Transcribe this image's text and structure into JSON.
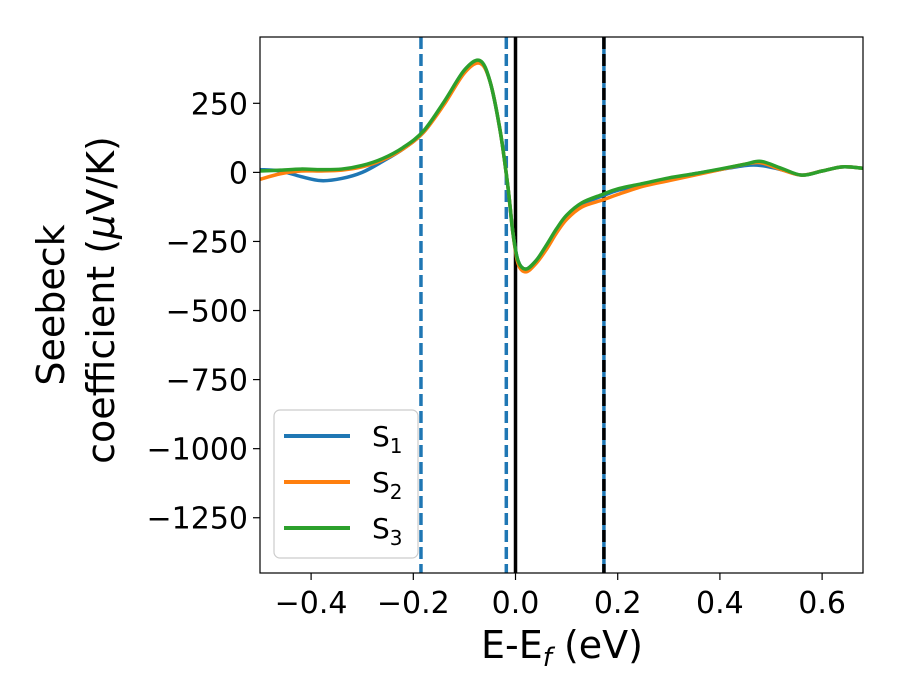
{
  "chart_data": {
    "type": "line",
    "xlabel": "E-E",
    "xlabel_sub": "f",
    "xlabel_unit": " (eV)",
    "ylabel_line1": "Seebeck",
    "ylabel_line2": "coefficient  (",
    "ylabel_mu": "μ",
    "ylabel_unit": "V/K)",
    "xlim": [
      -0.5,
      0.68
    ],
    "ylim": [
      -1450,
      490
    ],
    "x_ticks": [
      -0.4,
      -0.2,
      0.0,
      0.2,
      0.4,
      0.6
    ],
    "x_tick_labels": [
      "−0.4",
      "−0.2",
      "0.0",
      "0.2",
      "0.4",
      "0.6"
    ],
    "y_ticks": [
      250,
      0,
      -250,
      -500,
      -750,
      -1000,
      -1250
    ],
    "y_tick_labels": [
      "250",
      "0",
      "−250",
      "−500",
      "−750",
      "−1000",
      "−1250"
    ],
    "grid": false,
    "legend_position": "lower-left",
    "vertical_lines": [
      {
        "x": -0.185,
        "color": "#1f77b4",
        "style": "dashed"
      },
      {
        "x": -0.018,
        "color": "#1f77b4",
        "style": "dashed"
      },
      {
        "x": 0.0,
        "color": "#000000",
        "style": "solid"
      },
      {
        "x": 0.173,
        "color": "#1f77b4",
        "style": "solid"
      },
      {
        "x": 0.173,
        "color": "#000000",
        "style": "dashed"
      }
    ],
    "series": [
      {
        "name": "S",
        "name_sub": "1",
        "color": "#1f77b4",
        "x": [
          -0.5,
          -0.46,
          -0.42,
          -0.38,
          -0.34,
          -0.3,
          -0.26,
          -0.22,
          -0.18,
          -0.14,
          -0.1,
          -0.07,
          -0.05,
          -0.03,
          -0.015,
          -0.005,
          0.005,
          0.02,
          0.04,
          0.06,
          0.08,
          0.1,
          0.13,
          0.17,
          0.2,
          0.25,
          0.3,
          0.35,
          0.4,
          0.45,
          0.48,
          0.52,
          0.56,
          0.6,
          0.64,
          0.68
        ],
        "values": [
          10,
          5,
          -15,
          -30,
          -22,
          0,
          40,
          85,
          145,
          250,
          370,
          400,
          330,
          150,
          -50,
          -220,
          -320,
          -350,
          -320,
          -270,
          -210,
          -160,
          -115,
          -85,
          -65,
          -45,
          -25,
          -5,
          10,
          25,
          25,
          10,
          -10,
          5,
          20,
          15
        ]
      },
      {
        "name": "S",
        "name_sub": "2",
        "color": "#ff7f0e",
        "x": [
          -0.5,
          -0.46,
          -0.42,
          -0.38,
          -0.34,
          -0.3,
          -0.26,
          -0.22,
          -0.18,
          -0.14,
          -0.1,
          -0.07,
          -0.05,
          -0.03,
          -0.015,
          -0.005,
          0.005,
          0.02,
          0.04,
          0.06,
          0.08,
          0.1,
          0.13,
          0.17,
          0.2,
          0.25,
          0.3,
          0.35,
          0.4,
          0.45,
          0.48,
          0.52,
          0.56,
          0.6,
          0.64,
          0.68
        ],
        "values": [
          -25,
          -5,
          5,
          5,
          8,
          20,
          45,
          85,
          145,
          245,
          360,
          395,
          330,
          150,
          -50,
          -220,
          -330,
          -360,
          -330,
          -280,
          -220,
          -170,
          -125,
          -100,
          -80,
          -50,
          -30,
          -10,
          10,
          30,
          35,
          10,
          -10,
          5,
          20,
          15
        ]
      },
      {
        "name": "S",
        "name_sub": "3",
        "color": "#2ca02c",
        "x": [
          -0.5,
          -0.46,
          -0.42,
          -0.38,
          -0.34,
          -0.3,
          -0.26,
          -0.22,
          -0.18,
          -0.14,
          -0.1,
          -0.07,
          -0.05,
          -0.03,
          -0.015,
          -0.005,
          0.005,
          0.02,
          0.04,
          0.06,
          0.08,
          0.1,
          0.13,
          0.17,
          0.2,
          0.25,
          0.3,
          0.35,
          0.4,
          0.45,
          0.48,
          0.52,
          0.56,
          0.6,
          0.64,
          0.68
        ],
        "values": [
          5,
          8,
          12,
          10,
          12,
          25,
          50,
          90,
          150,
          255,
          370,
          405,
          330,
          150,
          -50,
          -220,
          -320,
          -350,
          -320,
          -265,
          -205,
          -155,
          -110,
          -80,
          -60,
          -40,
          -20,
          -5,
          12,
          30,
          40,
          15,
          -10,
          5,
          20,
          15
        ]
      }
    ]
  }
}
